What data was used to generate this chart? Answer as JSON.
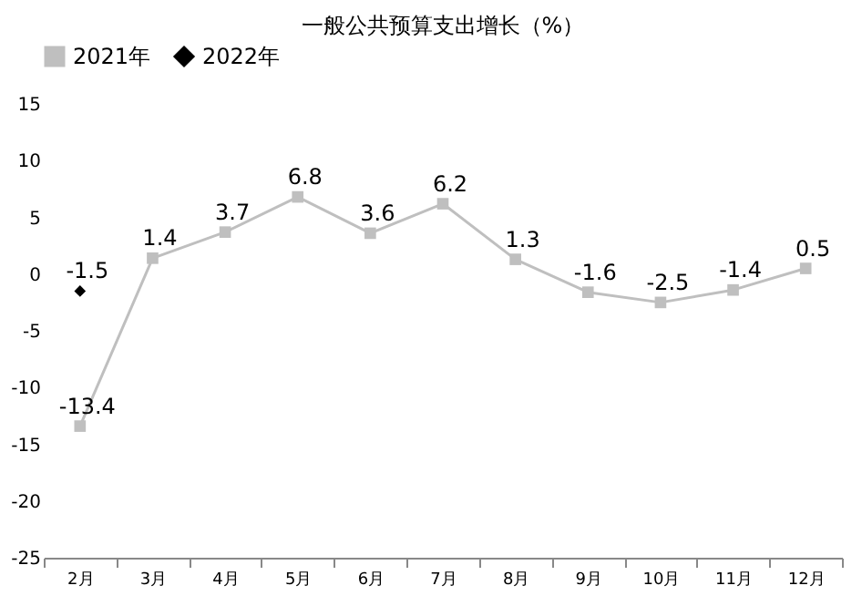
{
  "chart_data": {
    "type": "line",
    "title": "一般公共预算支出增长（%）",
    "categories": [
      "2月",
      "3月",
      "4月",
      "5月",
      "6月",
      "7月",
      "8月",
      "9月",
      "10月",
      "11月",
      "12月"
    ],
    "series": [
      {
        "name": "2021年",
        "color": "#bfbfbf",
        "marker": "square",
        "values": [
          -13.4,
          1.4,
          3.7,
          6.8,
          3.6,
          6.2,
          1.3,
          -1.6,
          -2.5,
          -1.4,
          0.5
        ]
      },
      {
        "name": "2022年",
        "color": "#000000",
        "marker": "diamond",
        "values": [
          -1.5,
          null,
          null,
          null,
          null,
          null,
          null,
          null,
          null,
          null,
          null
        ]
      }
    ],
    "ylim": [
      -25,
      15
    ],
    "yticks": [
      -25,
      -20,
      -15,
      -10,
      -5,
      0,
      5,
      10,
      15
    ],
    "grid": false,
    "legend": "top",
    "data_labels": true
  }
}
